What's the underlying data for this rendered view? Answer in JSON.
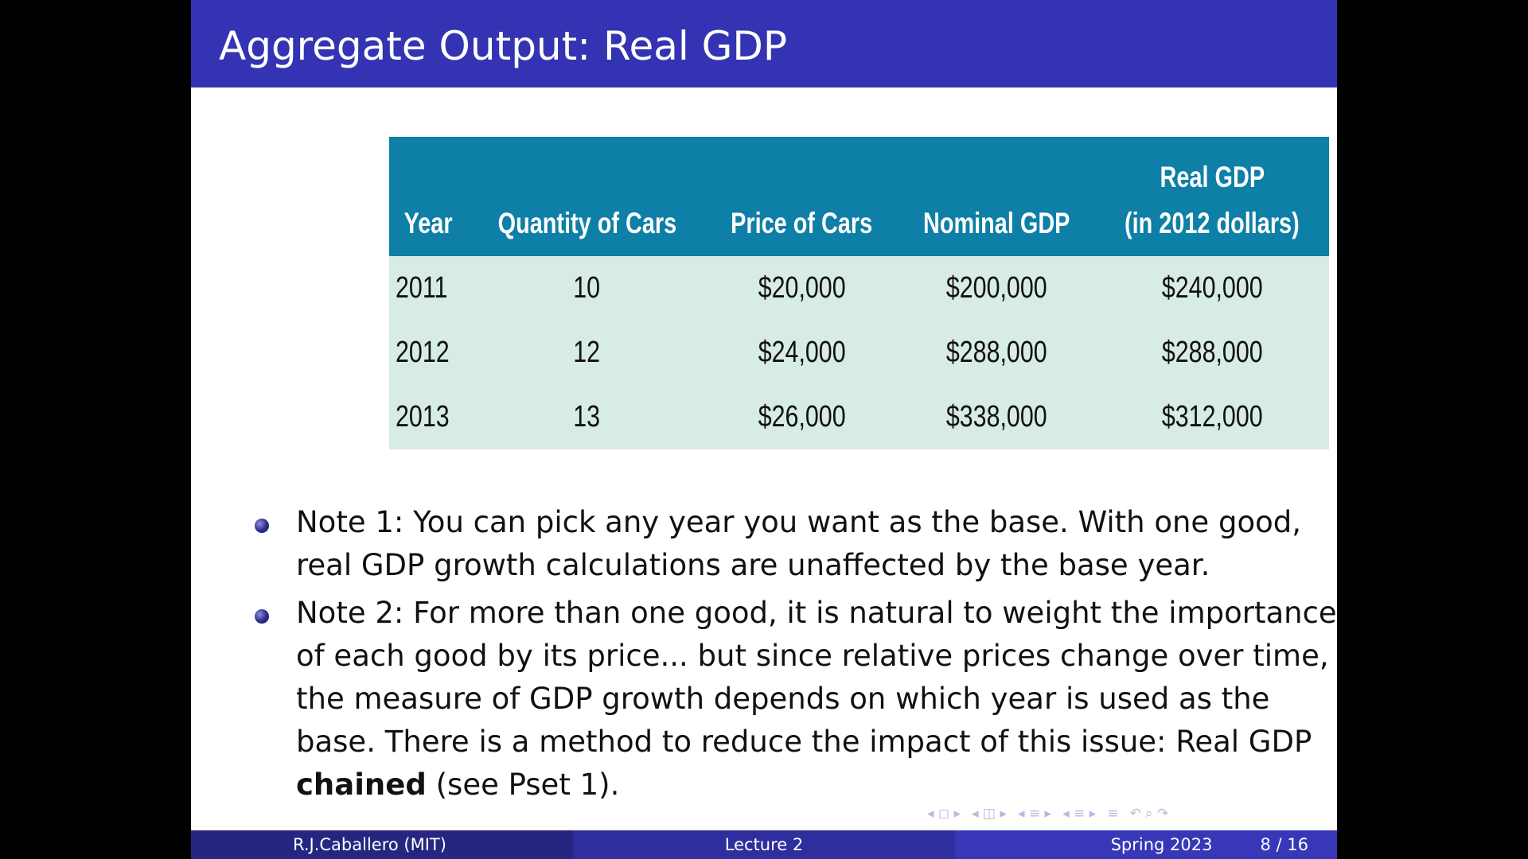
{
  "slide": {
    "title": "Aggregate Output: Real GDP"
  },
  "table": {
    "headers": [
      "Year",
      "Quantity of Cars",
      "Price of Cars",
      "Nominal GDP",
      "Real GDP",
      "(in 2012 dollars)"
    ],
    "rows": [
      [
        "2011",
        "10",
        "$20,000",
        "$200,000",
        "$240,000"
      ],
      [
        "2012",
        "12",
        "$24,000",
        "$288,000",
        "$288,000"
      ],
      [
        "2013",
        "13",
        "$26,000",
        "$338,000",
        "$312,000"
      ]
    ]
  },
  "notes": {
    "note1": "Note 1: You can pick any year you want as the base. With one good, real GDP growth calculations are unaffected by the base year.",
    "note2_before": "Note 2: For more than one good, it is natural to weight the importance of each good by its price... but since relative prices change over time, the measure of GDP growth depends on which year is used as the base. There is a method to reduce the impact of this issue: Real GDP ",
    "note2_bold": "chained",
    "note2_after": " (see Pset 1)."
  },
  "navigation": {
    "glyphs": [
      "◂ ◻ ▸",
      "◂ ◫ ▸",
      "◂ ≡ ▸",
      "◂ ≡ ▸",
      "≡",
      "↶ ⌕ ↷"
    ]
  },
  "footer": {
    "author": "R.J.Caballero  (MIT)",
    "lecture": "Lecture 2",
    "date": "Spring 2023",
    "page": "8 / 16"
  },
  "colors": {
    "title_bar": "#3333b3",
    "table_header": "#0e7fa6",
    "table_body": "#d7ebe7"
  }
}
